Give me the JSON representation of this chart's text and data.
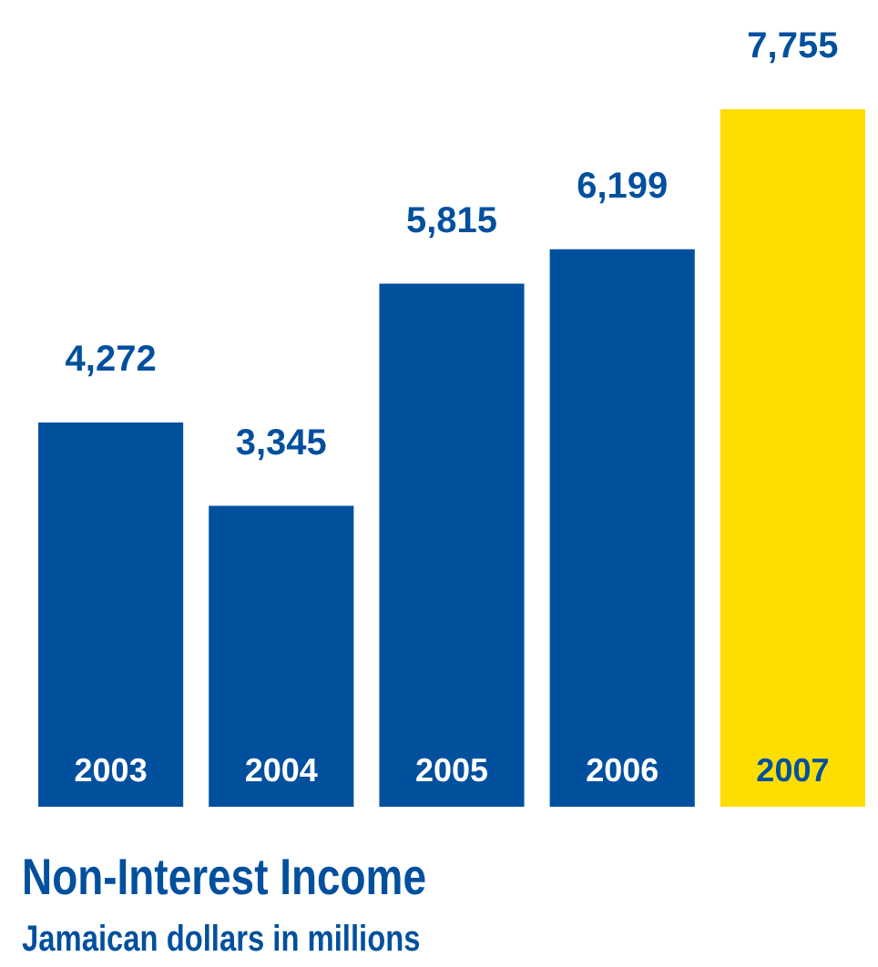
{
  "chart_data": {
    "type": "bar",
    "title": "Non-Interest Income",
    "subtitle": "Jamaican dollars in millions",
    "categories": [
      "2003",
      "2004",
      "2005",
      "2006",
      "2007"
    ],
    "values": [
      4272,
      3345,
      5815,
      6199,
      7755
    ],
    "value_labels": [
      "4,272",
      "3,345",
      "5,815",
      "6,199",
      "7,755"
    ],
    "colors": [
      "#00509e",
      "#00509e",
      "#00509e",
      "#00509e",
      "#fedd00"
    ],
    "tick_labels": false
  }
}
